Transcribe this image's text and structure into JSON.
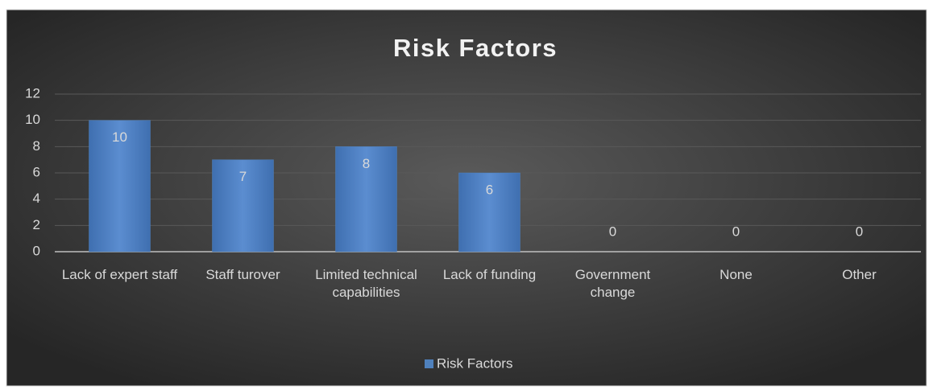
{
  "chart_data": {
    "type": "bar",
    "title": "Risk Factors",
    "categories": [
      "Lack of expert staff",
      "Staff turover",
      "Limited technical capabilities",
      "Lack of funding",
      "Government change",
      "None",
      "Other"
    ],
    "series": [
      {
        "name": "Risk Factors",
        "color": "#4f81bd",
        "values": [
          10,
          7,
          8,
          6,
          0,
          0,
          0
        ]
      }
    ],
    "ylim": [
      0,
      12
    ],
    "yticks": [
      0,
      2,
      4,
      6,
      8,
      10,
      12
    ],
    "grid": true,
    "legend": "bottom"
  }
}
